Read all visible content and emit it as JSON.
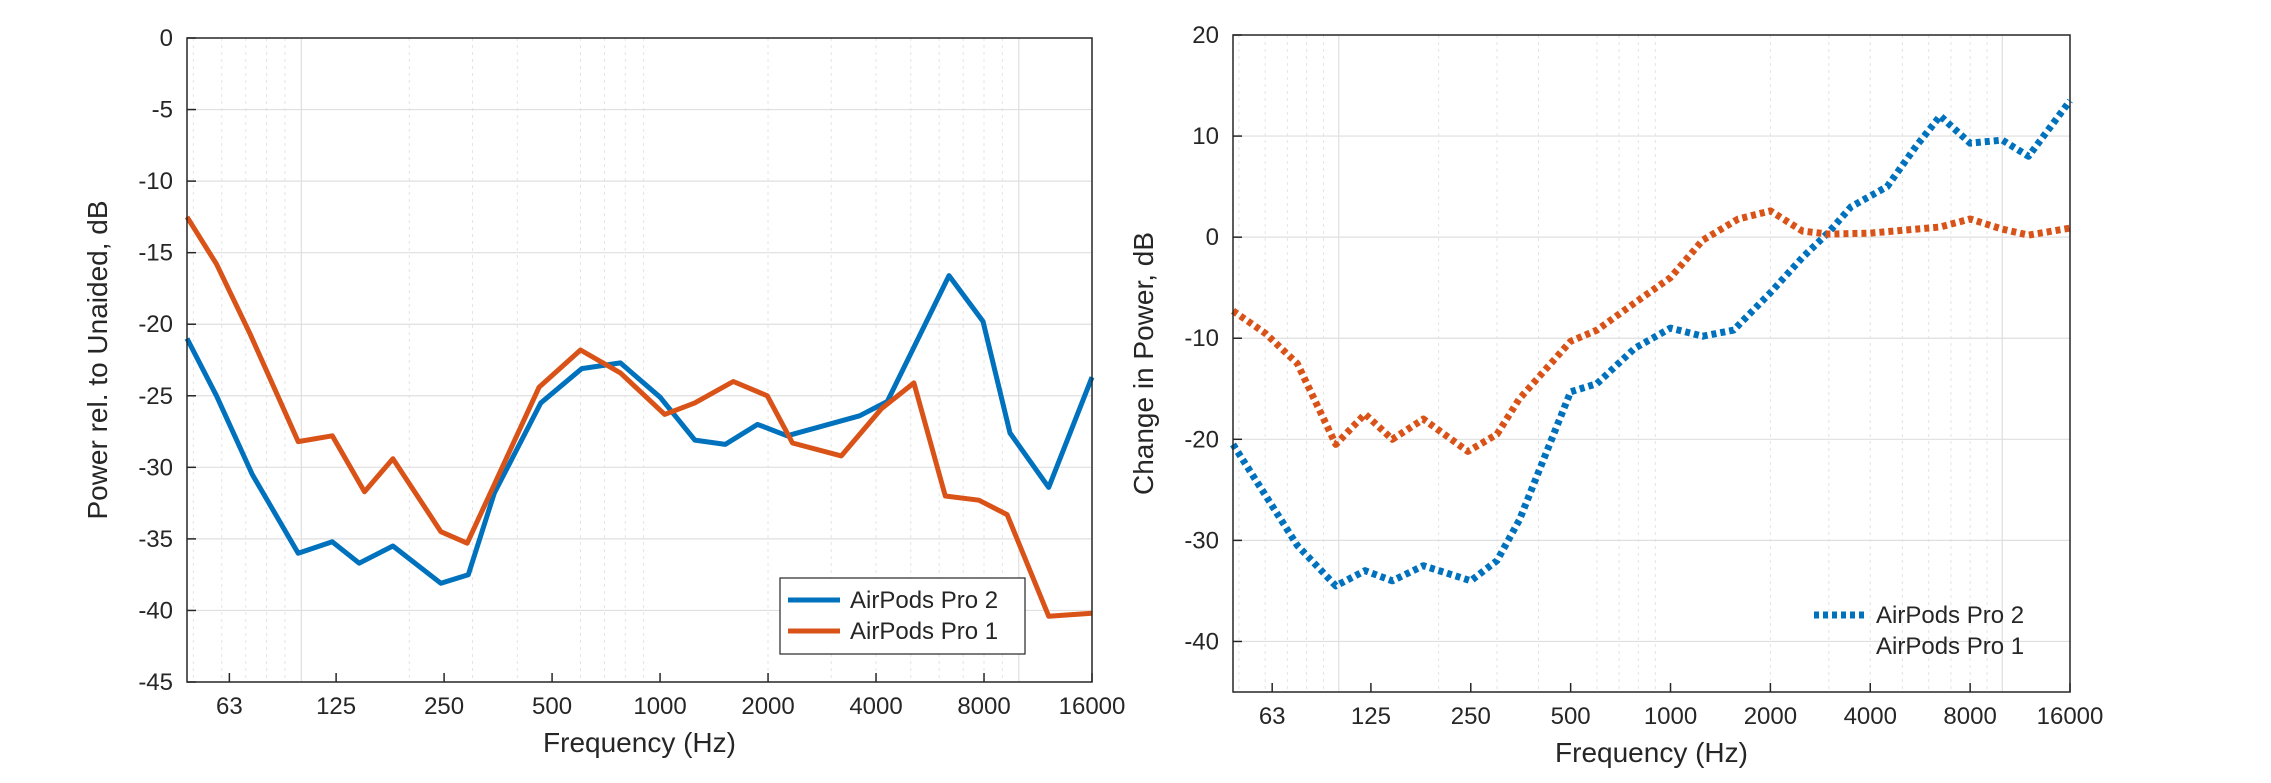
{
  "colors": {
    "blue": "#0072BD",
    "orange": "#D95319"
  },
  "chart_data": [
    {
      "type": "line",
      "style": "solid",
      "xscale": "log",
      "xlim": [
        48,
        16000
      ],
      "ylim": [
        -45,
        0
      ],
      "xticks": [
        63,
        125,
        250,
        500,
        1000,
        2000,
        4000,
        8000,
        16000
      ],
      "xticklabels": [
        "63",
        "125",
        "250",
        "500",
        "1000",
        "2000",
        "4000",
        "8000",
        "16000"
      ],
      "yticks": [
        -45,
        -40,
        -35,
        -30,
        -25,
        -20,
        -15,
        -10,
        -5,
        0
      ],
      "yticklabels": [
        "-45",
        "-40",
        "-35",
        "-30",
        "-25",
        "-20",
        "-15",
        "-10",
        "-5",
        "0"
      ],
      "xlabel": "Frequency (Hz)",
      "ylabel": "Power rel. to Unaided, dB",
      "grid": true,
      "legend_position": "bottom-right",
      "legend_box": true,
      "series": [
        {
          "name": "AirPods Pro 2",
          "color": "#0072BD",
          "x": [
            48,
            58,
            73,
            98,
            122,
            145,
            180,
            245,
            292,
            345,
            465,
            605,
            775,
            1000,
            1250,
            1520,
            1870,
            2260,
            3600,
            4300,
            6390,
            7950,
            9450,
            12120,
            16000
          ],
          "y": [
            -21,
            -25,
            -30.5,
            -36,
            -35.2,
            -36.7,
            -35.5,
            -38.1,
            -37.5,
            -31.8,
            -25.5,
            -23.1,
            -22.7,
            -25.1,
            -28.1,
            -28.4,
            -27,
            -27.8,
            -26.4,
            -25.4,
            -16.6,
            -19.8,
            -27.6,
            -31.4,
            -23.7
          ]
        },
        {
          "name": "AirPods Pro 1",
          "color": "#D95319",
          "x": [
            48,
            58,
            72,
            98,
            122,
            150,
            180,
            245,
            290,
            345,
            460,
            600,
            775,
            1030,
            1250,
            1600,
            1990,
            2340,
            3200,
            4140,
            5100,
            6240,
            7740,
            9280,
            12120,
            16000
          ],
          "y": [
            -12.5,
            -15.8,
            -20.7,
            -28.2,
            -27.8,
            -31.7,
            -29.4,
            -34.5,
            -35.3,
            -31.2,
            -24.4,
            -21.8,
            -23.4,
            -26.3,
            -25.5,
            -24,
            -25,
            -28.3,
            -29.2,
            -25.9,
            -24.1,
            -32,
            -32.3,
            -33.3,
            -40.4,
            -40.2
          ]
        }
      ]
    },
    {
      "type": "line",
      "style": "dotted",
      "xscale": "log",
      "xlim": [
        48,
        16000
      ],
      "ylim": [
        -45,
        20
      ],
      "xticks": [
        63,
        125,
        250,
        500,
        1000,
        2000,
        4000,
        8000,
        16000
      ],
      "xticklabels": [
        "63",
        "125",
        "250",
        "500",
        "1000",
        "2000",
        "4000",
        "8000",
        "16000"
      ],
      "yticks": [
        -40,
        -30,
        -20,
        -10,
        0,
        10,
        20
      ],
      "yticklabels": [
        "-40",
        "-30",
        "-20",
        "-10",
        "0",
        "10",
        "20"
      ],
      "xlabel": "Frequency (Hz)",
      "ylabel": "Change in Power, dB",
      "grid": true,
      "legend_position": "bottom-right",
      "legend_box": false,
      "series": [
        {
          "name": "AirPods Pro 2",
          "color": "#0072BD",
          "show_legend_line": true,
          "x": [
            48,
            60,
            75,
            98,
            120,
            145,
            180,
            250,
            300,
            350,
            500,
            600,
            780,
            1000,
            1250,
            1550,
            2000,
            2500,
            3000,
            3500,
            4500,
            5500,
            6500,
            8000,
            10000,
            12000,
            16000
          ],
          "y": [
            -20.5,
            -25.5,
            -30.5,
            -34.5,
            -33,
            -34,
            -32.5,
            -34,
            -32,
            -28,
            -15.3,
            -14.5,
            -11,
            -9,
            -9.8,
            -9.2,
            -5.5,
            -2,
            0.5,
            3,
            5,
            9,
            12,
            9.3,
            9.6,
            8,
            13.5
          ]
        },
        {
          "name": "AirPods Pro 1",
          "color": "#D95319",
          "show_legend_line": false,
          "x": [
            48,
            60,
            75,
            98,
            120,
            145,
            180,
            245,
            300,
            350,
            500,
            600,
            780,
            1000,
            1250,
            1600,
            2000,
            2500,
            3000,
            4000,
            5500,
            6500,
            8000,
            10000,
            12000,
            16000
          ],
          "y": [
            -7.3,
            -9.5,
            -12.5,
            -20.5,
            -17.5,
            -20,
            -18,
            -21.2,
            -19.5,
            -16,
            -10.3,
            -9.2,
            -6.5,
            -4,
            -0.3,
            1.8,
            2.6,
            0.6,
            0.3,
            0.4,
            0.8,
            1,
            1.8,
            0.8,
            0.2,
            0.9
          ]
        }
      ]
    }
  ]
}
